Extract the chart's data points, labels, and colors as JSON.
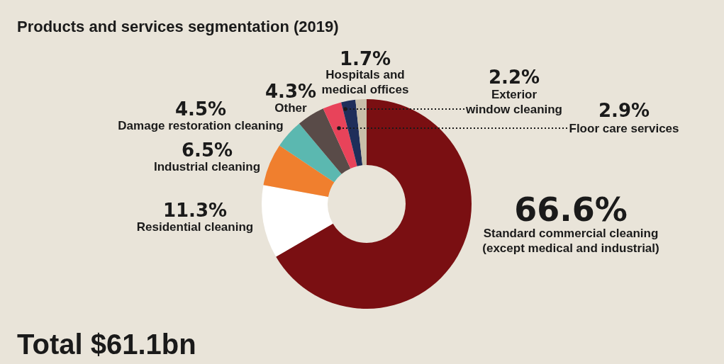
{
  "chart_data": {
    "type": "donut",
    "title": "Products and services segmentation (2019)",
    "categories": [
      "Standard commercial cleaning\n(except medical and industrial)",
      "Residential cleaning",
      "Industrial cleaning",
      "Damage restoration cleaning",
      "Other",
      "Floor care services",
      "Exterior\nwindow cleaning",
      "Hospitals and\nmedical offices"
    ],
    "values": [
      66.6,
      11.3,
      6.5,
      4.5,
      4.3,
      2.9,
      2.2,
      1.7
    ],
    "value_labels": [
      "66.6%",
      "11.3%",
      "6.5%",
      "4.5%",
      "4.3%",
      "2.9%",
      "2.2%",
      "1.7%"
    ],
    "colors": [
      "#7a0f12",
      "#ffffff",
      "#f07f2e",
      "#5bb8b0",
      "#594b48",
      "#e8435a",
      "#1f2e5a",
      "#c9bfa9"
    ],
    "annotations": [
      "Total $61.1bn"
    ]
  }
}
